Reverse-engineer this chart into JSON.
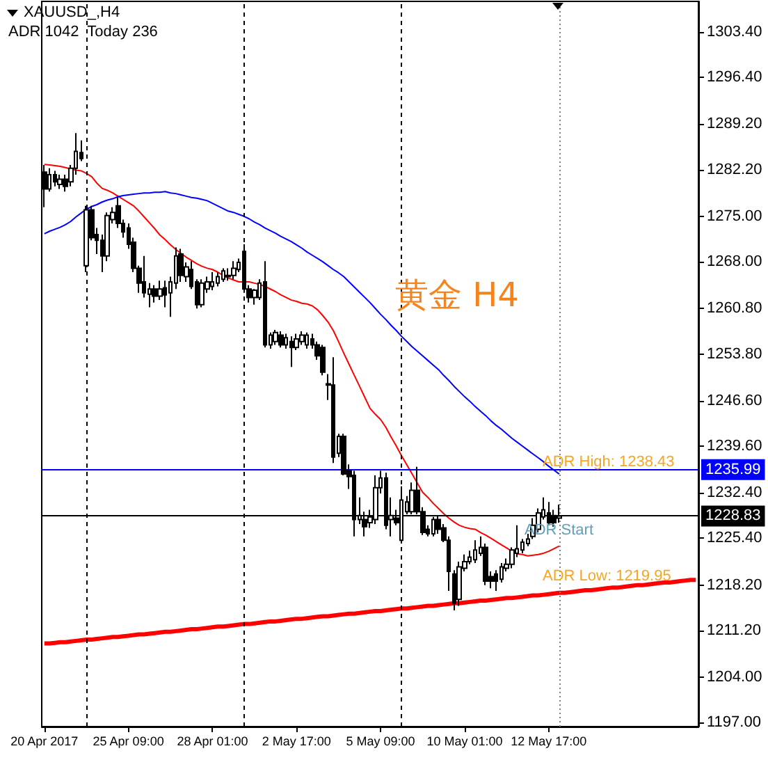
{
  "chart_data": {
    "type": "candlestick",
    "title": "XAUUSD_,H4",
    "subtitle": "ADR 1042  Today 236",
    "categories": [
      "20 Apr 2017",
      null,
      null,
      null,
      null,
      null,
      null,
      null,
      null,
      null,
      null,
      null,
      null,
      null,
      null,
      null,
      "25 Apr 09:00",
      null,
      null,
      null,
      null,
      null,
      null,
      null,
      null,
      null,
      null,
      null,
      null,
      null,
      null,
      null,
      "28 Apr 01:00",
      null,
      null,
      null,
      null,
      null,
      null,
      null,
      null,
      null,
      null,
      null,
      null,
      null,
      null,
      null,
      "2 May 17:00",
      null,
      null,
      null,
      null,
      null,
      null,
      null,
      null,
      null,
      null,
      null,
      null,
      null,
      null,
      null,
      "5 May 09:00",
      null,
      null,
      null,
      null,
      null,
      null,
      null,
      null,
      null,
      null,
      null,
      null,
      null,
      null,
      null,
      "10 May 01:00",
      null,
      null,
      null,
      null,
      null,
      null,
      null,
      null,
      null,
      null,
      null,
      null,
      null,
      null,
      null,
      "12 May 17:00",
      null,
      null,
      null,
      null,
      null,
      null,
      null,
      null,
      null,
      null,
      null,
      null,
      null,
      null,
      null,
      null,
      null,
      null,
      null,
      null,
      null,
      null,
      null,
      null,
      null,
      null,
      null,
      null
    ],
    "color": "#000000",
    "ohlc": [
      [
        1281.8,
        1282.9,
        1276.4,
        1279.2
      ],
      [
        1279.2,
        1282.4,
        1278.8,
        1281.4
      ],
      [
        1281.4,
        1282.0,
        1279.6,
        1280.3
      ],
      [
        1279.9,
        1281.4,
        1279.2,
        1280.7
      ],
      [
        1280.7,
        1281.4,
        1278.8,
        1279.6
      ],
      [
        1280.3,
        1282.9,
        1279.6,
        1282.4
      ],
      [
        1282.4,
        1287.8,
        1281.4,
        1285.0
      ],
      [
        1284.8,
        1286.7,
        1283.5,
        1283.9
      ],
      [
        1267.4,
        1276.6,
        1266.4,
        1276.0
      ],
      [
        1276.0,
        1276.6,
        1271.3,
        1271.7
      ],
      [
        1272.2,
        1273.2,
        1269.2,
        1271.3
      ],
      [
        1271.3,
        1272.2,
        1266.4,
        1268.9
      ],
      [
        1268.9,
        1275.6,
        1268.1,
        1275.1
      ],
      [
        1274.5,
        1276.4,
        1273.9,
        1275.6
      ],
      [
        1276.6,
        1277.9,
        1273.2,
        1273.9
      ],
      [
        1273.9,
        1274.5,
        1271.7,
        1272.6
      ],
      [
        1273.2,
        1273.9,
        1270.0,
        1270.7
      ],
      [
        1271.0,
        1271.7,
        1266.4,
        1267.0
      ],
      [
        1267.0,
        1267.4,
        1263.2,
        1264.7
      ],
      [
        1264.9,
        1268.9,
        1262.5,
        1263.2
      ],
      [
        1263.0,
        1264.7,
        1261.0,
        1263.8
      ],
      [
        1263.8,
        1264.4,
        1261.7,
        1262.7
      ],
      [
        1262.7,
        1265.1,
        1262.1,
        1263.8
      ],
      [
        1264.0,
        1265.1,
        1261.0,
        1262.9
      ],
      [
        1263.2,
        1265.7,
        1259.5,
        1264.9
      ],
      [
        1264.7,
        1270.2,
        1263.8,
        1268.9
      ],
      [
        1269.2,
        1270.0,
        1264.9,
        1265.9
      ],
      [
        1265.7,
        1267.9,
        1264.9,
        1267.2
      ],
      [
        1266.8,
        1268.1,
        1263.8,
        1264.2
      ],
      [
        1264.9,
        1265.3,
        1260.8,
        1261.4
      ],
      [
        1261.4,
        1265.3,
        1261.0,
        1264.7
      ],
      [
        1263.8,
        1265.7,
        1263.2,
        1264.9
      ],
      [
        1264.2,
        1266.4,
        1263.6,
        1264.9
      ],
      [
        1264.7,
        1266.4,
        1264.2,
        1265.7
      ],
      [
        1265.3,
        1267.0,
        1264.9,
        1266.6
      ],
      [
        1265.9,
        1267.0,
        1265.1,
        1265.7
      ],
      [
        1265.9,
        1268.1,
        1265.3,
        1267.0
      ],
      [
        1266.8,
        1268.5,
        1266.4,
        1267.9
      ],
      [
        1269.6,
        1270.7,
        1263.2,
        1263.8
      ],
      [
        1263.8,
        1264.4,
        1261.7,
        1262.5
      ],
      [
        1262.5,
        1263.8,
        1261.4,
        1263.6
      ],
      [
        1262.5,
        1265.3,
        1262.1,
        1264.7
      ],
      [
        1264.9,
        1268.1,
        1254.8,
        1255.2
      ],
      [
        1255.2,
        1257.1,
        1254.6,
        1256.7
      ],
      [
        1255.7,
        1257.5,
        1255.2,
        1257.1
      ],
      [
        1256.7,
        1257.3,
        1254.8,
        1255.2
      ],
      [
        1255.2,
        1256.9,
        1254.6,
        1256.3
      ],
      [
        1255.7,
        1256.5,
        1251.8,
        1254.8
      ],
      [
        1254.8,
        1256.9,
        1254.4,
        1256.1
      ],
      [
        1255.7,
        1257.3,
        1255.2,
        1256.7
      ],
      [
        1255.2,
        1257.1,
        1254.6,
        1256.7
      ],
      [
        1256.1,
        1256.9,
        1254.6,
        1255.2
      ],
      [
        1255.2,
        1255.7,
        1252.9,
        1253.5
      ],
      [
        1254.8,
        1255.2,
        1250.5,
        1251.0
      ],
      [
        1249.2,
        1250.7,
        1246.7,
        1249.0
      ],
      [
        1249.0,
        1253.3,
        1237.0,
        1237.9
      ],
      [
        1238.5,
        1241.5,
        1237.9,
        1241.1
      ],
      [
        1241.1,
        1241.5,
        1235.1,
        1235.3
      ],
      [
        1235.8,
        1236.8,
        1233.0,
        1234.9
      ],
      [
        1235.1,
        1235.8,
        1225.7,
        1228.3
      ],
      [
        1228.3,
        1231.7,
        1227.6,
        1228.9
      ],
      [
        1228.3,
        1229.5,
        1225.7,
        1227.2
      ],
      [
        1227.8,
        1229.8,
        1227.0,
        1228.7
      ],
      [
        1228.3,
        1235.1,
        1227.6,
        1233.2
      ],
      [
        1233.2,
        1235.8,
        1232.3,
        1234.7
      ],
      [
        1234.7,
        1235.5,
        1226.8,
        1227.4
      ],
      [
        1228.3,
        1231.7,
        1225.7,
        1228.9
      ],
      [
        1228.5,
        1229.8,
        1227.4,
        1227.8
      ],
      [
        1225.1,
        1233.4,
        1224.6,
        1231.3
      ],
      [
        1229.5,
        1231.9,
        1229.1,
        1231.0
      ],
      [
        1229.5,
        1234.0,
        1229.1,
        1232.8
      ],
      [
        1232.8,
        1236.4,
        1229.1,
        1229.5
      ],
      [
        1229.5,
        1230.2,
        1225.9,
        1226.3
      ],
      [
        1226.8,
        1227.4,
        1225.7,
        1226.1
      ],
      [
        1226.1,
        1228.7,
        1225.7,
        1228.3
      ],
      [
        1228.3,
        1228.9,
        1226.1,
        1226.8
      ],
      [
        1227.0,
        1227.6,
        1224.8,
        1225.1
      ],
      [
        1225.1,
        1225.7,
        1217.3,
        1220.3
      ],
      [
        1219.9,
        1220.5,
        1214.3,
        1215.4
      ],
      [
        1216.0,
        1221.8,
        1215.0,
        1221.0
      ],
      [
        1220.8,
        1222.9,
        1220.3,
        1221.8
      ],
      [
        1221.8,
        1223.5,
        1221.4,
        1222.5
      ],
      [
        1222.1,
        1225.1,
        1221.6,
        1223.6
      ],
      [
        1223.1,
        1225.7,
        1222.7,
        1224.0
      ],
      [
        1224.0,
        1224.6,
        1218.2,
        1218.8
      ],
      [
        1219.5,
        1220.3,
        1217.7,
        1218.8
      ],
      [
        1219.9,
        1220.5,
        1217.3,
        1218.8
      ],
      [
        1219.1,
        1221.6,
        1218.6,
        1221.0
      ],
      [
        1220.8,
        1222.3,
        1220.3,
        1221.4
      ],
      [
        1221.4,
        1224.0,
        1220.8,
        1223.6
      ],
      [
        1223.1,
        1227.4,
        1222.5,
        1223.8
      ],
      [
        1223.6,
        1225.3,
        1223.1,
        1224.8
      ],
      [
        1224.6,
        1226.1,
        1224.2,
        1225.3
      ],
      [
        1225.7,
        1228.5,
        1225.3,
        1227.4
      ],
      [
        1226.8,
        1230.0,
        1226.3,
        1229.3
      ],
      [
        1228.7,
        1231.7,
        1228.3,
        1229.8
      ],
      [
        1229.3,
        1231.0,
        1227.4,
        1227.8
      ],
      [
        1228.9,
        1229.8,
        1227.2,
        1227.8
      ],
      [
        1228.5,
        1230.6,
        1227.8,
        1228.83
      ],
      null,
      null,
      null,
      null,
      null,
      null,
      null,
      null,
      null,
      null,
      null,
      null,
      null,
      null,
      null,
      null,
      null,
      null,
      null,
      null,
      null,
      null,
      null,
      null,
      null,
      null
    ],
    "series": [
      {
        "type": "line",
        "color": "#ff0000",
        "values": [
          1283.0,
          1282.9,
          1282.8,
          1282.7,
          1282.5,
          1282.3,
          1282.1,
          1282.0,
          1281.6,
          1281.1,
          1280.1,
          1279.3,
          1279.0,
          1278.6,
          1278.1,
          1277.6,
          1277.1,
          1276.6,
          1275.8,
          1274.9,
          1274.0,
          1273.1,
          1272.1,
          1271.4,
          1270.6,
          1269.9,
          1269.3,
          1268.7,
          1268.2,
          1267.7,
          1267.3,
          1267.0,
          1266.8,
          1266.4,
          1265.9,
          1265.5,
          1265.2,
          1264.9,
          1264.9,
          1264.9,
          1264.7,
          1264.5,
          1264.2,
          1263.8,
          1263.4,
          1262.9,
          1262.5,
          1262.1,
          1261.9,
          1261.6,
          1261.5,
          1261.2,
          1260.6,
          1259.7,
          1258.7,
          1257.4,
          1255.7,
          1253.9,
          1252.2,
          1250.5,
          1248.8,
          1247.1,
          1245.4,
          1244.5,
          1243.7,
          1242.5,
          1241.0,
          1239.6,
          1238.1,
          1236.7,
          1235.3,
          1233.9,
          1232.5,
          1231.7,
          1230.8,
          1230.0,
          1229.2,
          1228.5,
          1227.9,
          1227.4,
          1227.1,
          1226.9,
          1226.8,
          1226.3,
          1225.9,
          1225.4,
          1224.9,
          1224.4,
          1223.9,
          1223.4,
          1223.0,
          1222.9,
          1222.7,
          1222.8,
          1222.9,
          1223.1,
          1223.4,
          1223.8,
          1224.2,
          null,
          null,
          null,
          null,
          null,
          null,
          null,
          null,
          null,
          null,
          null,
          null,
          null,
          null,
          null,
          null,
          null,
          null,
          null,
          null,
          null,
          null,
          null,
          null,
          null,
          null
        ]
      },
      {
        "type": "line",
        "color": "#0000ff",
        "values": [
          1272.3,
          1272.7,
          1273.0,
          1273.3,
          1273.7,
          1274.2,
          1274.9,
          1275.5,
          1276.1,
          1276.5,
          1276.8,
          1277.2,
          1277.5,
          1277.7,
          1278.0,
          1278.2,
          1278.3,
          1278.4,
          1278.5,
          1278.6,
          1278.6,
          1278.7,
          1278.7,
          1278.8,
          1278.6,
          1278.5,
          1278.3,
          1278.1,
          1277.9,
          1277.8,
          1277.6,
          1277.4,
          1277.0,
          1276.6,
          1276.2,
          1275.8,
          1275.6,
          1275.3,
          1275.0,
          1274.6,
          1274.1,
          1273.7,
          1273.2,
          1272.8,
          1272.4,
          1271.9,
          1271.5,
          1271.1,
          1270.6,
          1270.1,
          1269.5,
          1269.0,
          1268.5,
          1268.0,
          1267.4,
          1266.8,
          1266.3,
          1265.7,
          1264.9,
          1264.1,
          1263.3,
          1262.5,
          1261.7,
          1260.8,
          1259.9,
          1259.1,
          1258.2,
          1257.4,
          1256.5,
          1255.7,
          1254.9,
          1254.2,
          1253.5,
          1252.8,
          1252.1,
          1251.4,
          1250.5,
          1249.7,
          1248.8,
          1248.0,
          1247.2,
          1246.5,
          1245.7,
          1245.0,
          1244.3,
          1243.5,
          1242.8,
          1242.2,
          1241.5,
          1240.8,
          1240.2,
          1239.6,
          1239.0,
          1238.4,
          1237.8,
          1237.2,
          1236.5,
          1235.9,
          1235.3,
          null,
          null,
          null,
          null,
          null,
          null,
          null,
          null,
          null,
          null,
          null,
          null,
          null,
          null,
          null,
          null,
          null,
          null,
          null,
          null,
          null,
          null,
          null,
          null,
          null,
          null
        ]
      },
      {
        "type": "step",
        "color": "#ff0000",
        "values": [
          1209.2,
          1209.3,
          1209.4,
          1209.4,
          1209.5,
          1209.6,
          1209.7,
          1209.8,
          1209.8,
          1209.9,
          1210.0,
          1210.1,
          1210.2,
          1210.2,
          1210.3,
          1210.4,
          1210.5,
          1210.6,
          1210.6,
          1210.7,
          1210.8,
          1210.9,
          1211.0,
          1211.0,
          1211.1,
          1211.2,
          1211.3,
          1211.4,
          1211.4,
          1211.5,
          1211.6,
          1211.7,
          1211.8,
          1211.8,
          1211.9,
          1212.0,
          1212.1,
          1212.2,
          1212.2,
          1212.3,
          1212.4,
          1212.5,
          1212.6,
          1212.6,
          1212.7,
          1212.8,
          1212.9,
          1213.0,
          1213.0,
          1213.1,
          1213.2,
          1213.3,
          1213.4,
          1213.4,
          1213.5,
          1213.6,
          1213.7,
          1213.8,
          1213.8,
          1213.9,
          1214.0,
          1214.1,
          1214.2,
          1214.2,
          1214.3,
          1214.4,
          1214.5,
          1214.6,
          1214.6,
          1214.7,
          1214.8,
          1214.9,
          1215.0,
          1215.0,
          1215.1,
          1215.2,
          1215.3,
          1215.4,
          1215.4,
          1215.5,
          1215.6,
          1215.7,
          1215.8,
          1215.8,
          1215.9,
          1216.0,
          1216.1,
          1216.2,
          1216.2,
          1216.3,
          1216.4,
          1216.5,
          1216.6,
          1216.6,
          1216.7,
          1216.8,
          1216.9,
          1217.0,
          1217.0,
          1217.1,
          1217.2,
          1217.3,
          1217.4,
          1217.4,
          1217.5,
          1217.6,
          1217.7,
          1217.8,
          1217.8,
          1217.9,
          1218.0,
          1218.1,
          1218.2,
          1218.2,
          1218.3,
          1218.4,
          1218.5,
          1218.6,
          1218.6,
          1218.7,
          1218.8,
          1218.9,
          1219.0,
          1219.0,
          1219.1
        ]
      }
    ],
    "ylim": [
      1196.4,
      1308.1
    ],
    "yticks": [
      {
        "value": 1303.4,
        "label": "1303.40"
      },
      {
        "value": 1296.4,
        "label": "1296.40"
      },
      {
        "value": 1289.2,
        "label": "1289.20"
      },
      {
        "value": 1282.2,
        "label": "1282.20"
      },
      {
        "value": 1275.0,
        "label": "1275.00"
      },
      {
        "value": 1268.0,
        "label": "1268.00"
      },
      {
        "value": 1260.8,
        "label": "1260.80"
      },
      {
        "value": 1253.8,
        "label": "1253.80"
      },
      {
        "value": 1246.6,
        "label": "1246.60"
      },
      {
        "value": 1239.6,
        "label": "1239.60"
      },
      {
        "value": 1232.4,
        "label": "1232.40"
      },
      {
        "value": 1225.4,
        "label": "1225.40"
      },
      {
        "value": 1218.2,
        "label": "1218.20"
      },
      {
        "value": 1211.2,
        "label": "1211.20"
      },
      {
        "value": 1204.0,
        "label": "1204.00"
      },
      {
        "value": 1197.0,
        "label": "1197.00"
      }
    ],
    "ref_lines": [
      {
        "axis": "y",
        "value": 1235.99,
        "label": "1235.99",
        "color": "#0000ff"
      },
      {
        "axis": "y",
        "value": 1228.83,
        "label": "1228.83",
        "color": "#000000"
      }
    ],
    "annotations": [
      "黄金 H4",
      "ADR High: 1238.43",
      "ADR Low: 1219.95",
      "ADR Start"
    ],
    "grid": false
  }
}
